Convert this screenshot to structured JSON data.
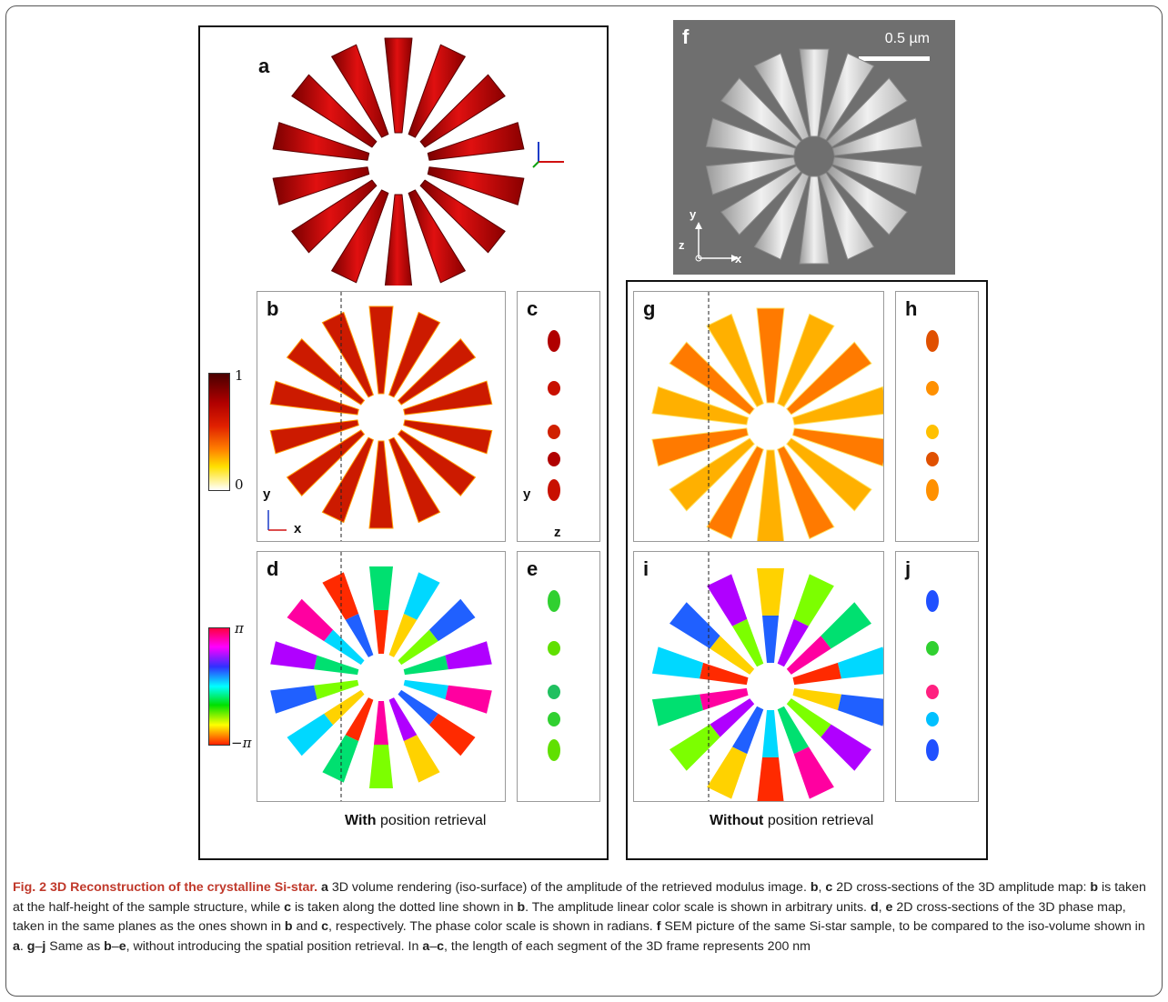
{
  "panels": {
    "a": "a",
    "b": "b",
    "c": "c",
    "d": "d",
    "e": "e",
    "f": "f",
    "g": "g",
    "h": "h",
    "i": "i",
    "j": "j"
  },
  "sem_scale": "0.5 µm",
  "axes": {
    "x": "x",
    "y": "y",
    "z": "z"
  },
  "colorbar_amplitude": {
    "max": "1",
    "min": "0"
  },
  "colorbar_phase": {
    "max": "π",
    "min": "−π"
  },
  "with_label": {
    "bold": "With",
    "rest": " position retrieval"
  },
  "without_label": {
    "bold": "Without",
    "rest": " position retrieval"
  },
  "caption": {
    "fig": "Fig. 2 3D Reconstruction of the crystalline Si-star.",
    "s1_b": "a",
    "s1": " 3D volume rendering (iso-surface) of the amplitude of the retrieved modulus image. ",
    "s2_b1": "b",
    "s2_sep": ", ",
    "s2_b2": "c",
    "s2": " 2D cross-sections of the 3D amplitude map: ",
    "s3_b": "b",
    "s3": " is taken at the half-height of the sample structure, while ",
    "s4_b": "c",
    "s4": " is taken along the dotted line shown in ",
    "s5_b": "b",
    "s5": ". The amplitude linear color scale is shown in arbitrary units. ",
    "s6_b1": "d",
    "s6_b2": "e",
    "s6": " 2D cross-sections of the 3D phase map, taken in the same planes as the ones shown in ",
    "s7_b1": "b",
    "s7_mid": " and ",
    "s7_b2": "c",
    "s7": ", respectively. The phase color scale is shown in radians. ",
    "s8_b": "f",
    "s8": " SEM picture of the same Si-star sample, to be compared to the iso-volume shown in ",
    "s9_b": "a",
    "s9": ". ",
    "s10_b1": "g",
    "s10_dash": "–",
    "s10_b2": "j",
    "s10": " Same as ",
    "s11_b1": "b",
    "s11_b2": "e",
    "s11": ", without introducing the spatial position retrieval. In ",
    "s12_b1": "a",
    "s12_b2": "c",
    "s12": ", the length of each segment of the 3D frame represents 200 nm"
  },
  "colors": {
    "amp_dark": "#8b0000",
    "amp_mid": "#cc1a00",
    "accent_red": "#c00000"
  }
}
